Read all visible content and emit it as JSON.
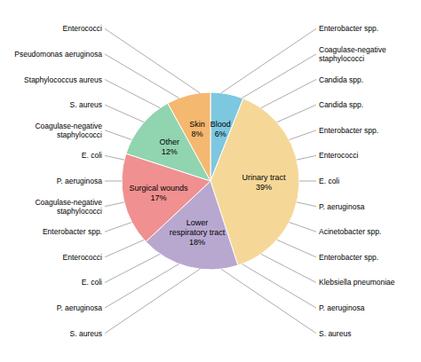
{
  "chart_data": {
    "type": "pie",
    "categories": [
      "Blood",
      "Urinary tract",
      "Lower\nrespiratory tract",
      "Surgical wounds",
      "Other",
      "Skin"
    ],
    "values": [
      6,
      39,
      18,
      17,
      12,
      8
    ],
    "value_labels": [
      "6%",
      "39%",
      "18%",
      "17%",
      "12%",
      "8%"
    ],
    "colors": [
      "#7DC8E0",
      "#F5D898",
      "#B8A8D0",
      "#F09090",
      "#90D4B0",
      "#F5B870"
    ],
    "data_labels": true,
    "annotations": [
      "Enterobacter spp.",
      "Coagulase-negative\nstaphylococci",
      "Candida spp.",
      "Candida spp.",
      "Enterobacter spp.",
      "Enterococci",
      "E. coli",
      "P. aeruginosa",
      "Acinetobacter spp.",
      "Enterobacter spp.",
      "Klebsiella pneumoniae",
      "P. aeruginosa",
      "S. aureus",
      "S. aureus",
      "P. aeruginosa",
      "E. coli",
      "Enterococci",
      "Enterobacter spp.",
      "Coagulase-negative\nstaphylococci",
      "P. aeruginosa",
      "E. coli",
      "Coagulase-negative\nstaphylococci",
      "S. aureus",
      "Staphylococcus aureus",
      "Pseudomonas aeruginosa",
      "Enterococci"
    ]
  }
}
